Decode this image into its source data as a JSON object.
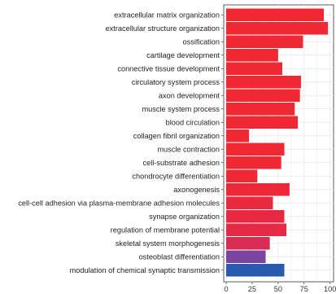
{
  "chart_data": {
    "type": "bar",
    "orientation": "horizontal",
    "categories": [
      "extracellular matrix organization",
      "extracellular structure organization",
      "ossification",
      "cartilage development",
      "connective tissue development",
      "circulatory system process",
      "axon development",
      "muscle system process",
      "blood circulation",
      "collagen fibril organization",
      "muscle contraction",
      "cell-substrate adhesion",
      "chondrocyte differentiation",
      "axonogenesis",
      "cell-cell adhesion via plasma-membrane adhesion molecules",
      "synapse organization",
      "regulation of membrane potential",
      "skeletal system morphogenesis",
      "osteoblast differentiation",
      "modulation of chemical synaptic transmission"
    ],
    "values": [
      94,
      98,
      74,
      50,
      54,
      72,
      71,
      66,
      69,
      22,
      56,
      53,
      30,
      61,
      45,
      56,
      58,
      42,
      38,
      56
    ],
    "colors": [
      "#ef2833",
      "#ef2833",
      "#ef2833",
      "#ef2833",
      "#ef2833",
      "#ef2833",
      "#ef2833",
      "#ef2833",
      "#ef2833",
      "#ef2833",
      "#ef2833",
      "#ef2833",
      "#ef2833",
      "#ec2838",
      "#ea283e",
      "#e82841",
      "#e62a45",
      "#d92c55",
      "#7a44a0",
      "#2a5aad"
    ],
    "x_ticks": [
      "0",
      "25",
      "50",
      "75",
      "100"
    ],
    "x_tick_values": [
      0,
      25,
      50,
      75,
      100
    ],
    "xlim": [
      0,
      100
    ],
    "xlabel": "",
    "ylabel": "",
    "title": "",
    "grid": true,
    "legend": "none"
  }
}
